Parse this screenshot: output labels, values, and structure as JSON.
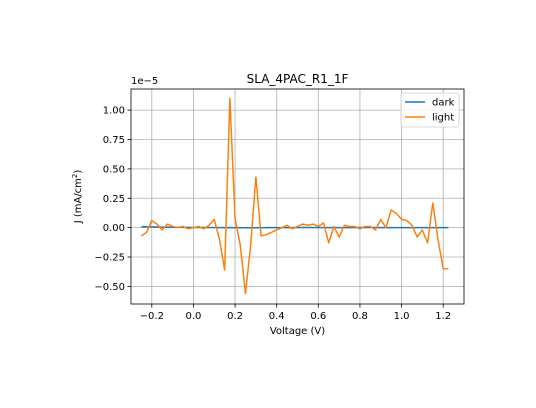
{
  "chart_data": {
    "type": "line",
    "title": "SLA_4PAC_R1_1F",
    "xlabel": "Voltage (V)",
    "ylabel_main": "J (mA/cm",
    "ylabel_sup": "2",
    "ylabel_close": ")",
    "y_offset_label": "1e−5",
    "xlim": [
      -0.3,
      1.3
    ],
    "ylim": [
      -0.65,
      1.18
    ],
    "x_ticks": [
      -0.2,
      0.0,
      0.2,
      0.4,
      0.6,
      0.8,
      1.0,
      1.2
    ],
    "x_tick_labels": [
      "−0.2",
      "0.0",
      "0.2",
      "0.4",
      "0.6",
      "0.8",
      "1.0",
      "1.2"
    ],
    "y_ticks": [
      -0.5,
      -0.25,
      0.0,
      0.25,
      0.5,
      0.75,
      1.0
    ],
    "y_tick_labels": [
      "−0.50",
      "−0.25",
      "0.00",
      "0.25",
      "0.50",
      "0.75",
      "1.00"
    ],
    "grid": true,
    "legend_position": "top-right",
    "series": [
      {
        "name": "dark",
        "color": "#1f77b4",
        "x": [
          -0.25,
          -0.15,
          -0.05,
          0.05,
          0.15,
          0.25,
          0.35,
          0.45,
          0.55,
          0.65,
          0.75,
          0.85,
          0.95,
          1.05,
          1.15,
          1.225
        ],
        "y": [
          0.008,
          0.004,
          0.002,
          0.001,
          0.0,
          -0.001,
          0.0,
          0.0,
          0.001,
          0.0,
          0.0,
          0.001,
          0.0,
          0.0,
          0.0,
          0.0
        ]
      },
      {
        "name": "light",
        "color": "#ff7f0e",
        "x": [
          -0.25,
          -0.225,
          -0.2,
          -0.175,
          -0.15,
          -0.125,
          -0.1,
          -0.075,
          -0.05,
          -0.025,
          0.0,
          0.025,
          0.05,
          0.075,
          0.1,
          0.125,
          0.15,
          0.175,
          0.2,
          0.225,
          0.25,
          0.275,
          0.3,
          0.325,
          0.35,
          0.375,
          0.4,
          0.425,
          0.45,
          0.475,
          0.5,
          0.525,
          0.55,
          0.575,
          0.6,
          0.625,
          0.65,
          0.675,
          0.7,
          0.725,
          0.75,
          0.775,
          0.8,
          0.825,
          0.85,
          0.875,
          0.9,
          0.925,
          0.95,
          0.975,
          1.0,
          1.025,
          1.05,
          1.075,
          1.1,
          1.125,
          1.15,
          1.175,
          1.2,
          1.225
        ],
        "y": [
          -0.07,
          -0.04,
          0.06,
          0.03,
          -0.02,
          0.03,
          0.01,
          0.0,
          0.01,
          -0.01,
          0.0,
          0.01,
          -0.01,
          0.02,
          0.07,
          -0.1,
          -0.36,
          1.1,
          0.08,
          -0.15,
          -0.56,
          -0.15,
          0.43,
          -0.07,
          -0.06,
          -0.04,
          -0.02,
          0.0,
          0.02,
          -0.01,
          0.01,
          0.03,
          0.02,
          0.03,
          0.01,
          0.04,
          -0.13,
          0.01,
          -0.08,
          0.02,
          0.01,
          0.01,
          -0.01,
          0.01,
          0.01,
          -0.02,
          0.07,
          0.0,
          0.15,
          0.12,
          0.07,
          0.06,
          0.02,
          -0.08,
          -0.02,
          -0.13,
          0.21,
          -0.1,
          -0.35,
          -0.35
        ]
      }
    ]
  }
}
